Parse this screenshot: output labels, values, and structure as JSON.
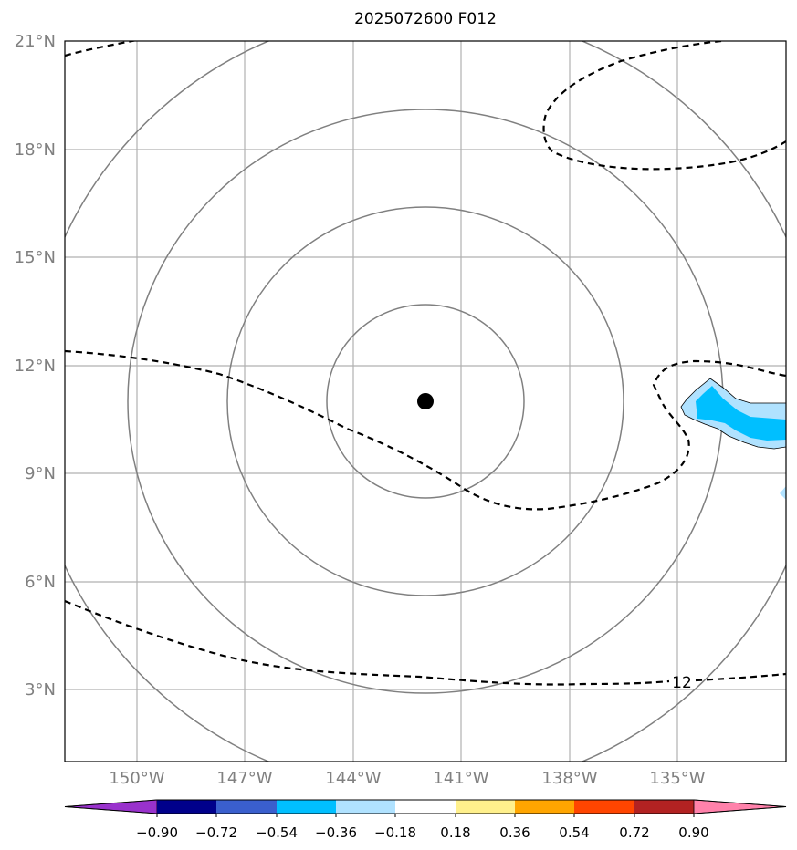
{
  "title": "2025072600 F012",
  "map": {
    "lat_ticks": [
      "21°N",
      "18°N",
      "15°N",
      "12°N",
      "9°N",
      "6°N",
      "3°N"
    ],
    "lon_ticks": [
      "150°W",
      "147°W",
      "144°W",
      "141°W",
      "138°W",
      "135°W"
    ],
    "storm_center_label": "storm center",
    "contour_label": "12"
  },
  "colorbar": {
    "tick_labels": [
      "−0.90",
      "−0.72",
      "−0.54",
      "−0.36",
      "−0.18",
      "0.18",
      "0.36",
      "0.54",
      "0.72",
      "0.90"
    ],
    "colors": [
      "#9932cc",
      "#00008b",
      "#3a5fcd",
      "#00bfff",
      "#b0e2ff",
      "#ffffff",
      "#fff08c",
      "#ffa500",
      "#ff4500",
      "#b22222",
      "#ff82ab"
    ]
  },
  "colors": {
    "grid": "#b0b0b0",
    "range_ring": "#808080",
    "contour": "#000000",
    "shade_light": "#b0e2ff",
    "shade_dark": "#00bfff"
  }
}
